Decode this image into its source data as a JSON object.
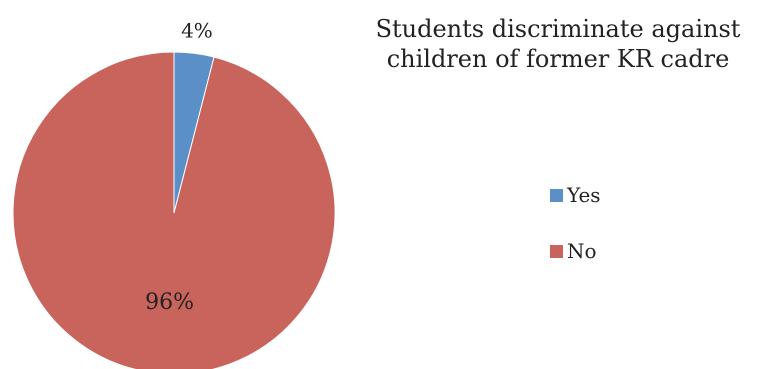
{
  "chart_data": {
    "type": "pie",
    "title_lines": [
      "Students discriminate against",
      "children of former KR cadre"
    ],
    "categories": [
      "Yes",
      "No"
    ],
    "values": [
      4,
      96
    ],
    "data_labels": [
      "4%",
      "96%"
    ],
    "colors": [
      "#5b8fc7",
      "#c9645d"
    ],
    "legend_position": "right"
  }
}
